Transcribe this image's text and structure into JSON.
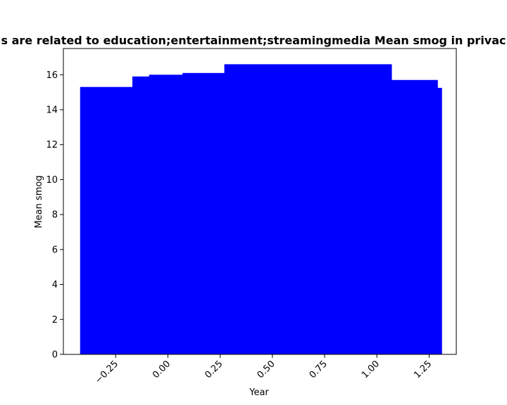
{
  "chart_data": {
    "type": "bar",
    "title": "s are related to education;entertainment;streamingmedia Mean smog in privac",
    "xlabel": "Year",
    "ylabel": "Mean smog",
    "xlim": [
      -0.5,
      1.38
    ],
    "ylim": [
      0,
      17.5
    ],
    "bar_color": "#0000ff",
    "bars": [
      {
        "x_start": -0.42,
        "x_end": -0.17,
        "value": 15.3
      },
      {
        "x_start": -0.17,
        "x_end": -0.09,
        "value": 15.9
      },
      {
        "x_start": -0.09,
        "x_end": 0.07,
        "value": 16.0
      },
      {
        "x_start": 0.07,
        "x_end": 0.27,
        "value": 16.1
      },
      {
        "x_start": 0.27,
        "x_end": 1.07,
        "value": 16.6
      },
      {
        "x_start": 1.07,
        "x_end": 1.29,
        "value": 15.7
      },
      {
        "x_start": 1.29,
        "x_end": 1.31,
        "value": 15.25
      }
    ],
    "xticks": [
      -0.25,
      0.0,
      0.25,
      0.5,
      0.75,
      1.0,
      1.25
    ],
    "xtick_labels": [
      "−0.25",
      "0.00",
      "0.25",
      "0.50",
      "0.75",
      "1.00",
      "1.25"
    ],
    "yticks": [
      0,
      2,
      4,
      6,
      8,
      10,
      12,
      14,
      16
    ],
    "ytick_labels": [
      "0",
      "2",
      "4",
      "6",
      "8",
      "10",
      "12",
      "14",
      "16"
    ],
    "grid": false,
    "legend": "none"
  }
}
